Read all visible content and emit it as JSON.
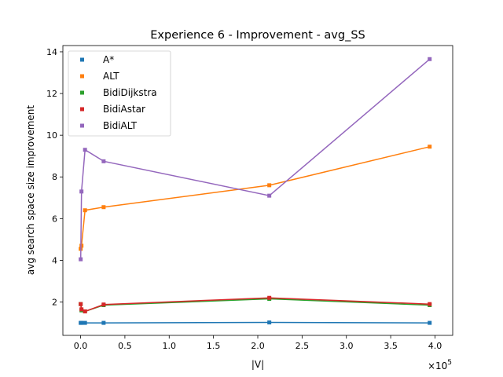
{
  "chart_data": {
    "type": "line",
    "title": "Experience 6 - Improvement - avg_SS",
    "xlabel": "|V|",
    "ylabel": "avg search space size improvement",
    "x_multiplier_label": "×10",
    "x_multiplier_exp": "5",
    "xlim": [
      -0.2,
      4.2
    ],
    "ylim": [
      0.4,
      14.3
    ],
    "x_ticks": [
      0.0,
      0.5,
      1.0,
      1.5,
      2.0,
      2.5,
      3.0,
      3.5,
      4.0
    ],
    "x_tick_labels": [
      "0.0",
      "0.5",
      "1.0",
      "1.5",
      "2.0",
      "2.5",
      "3.0",
      "3.5",
      "4.0"
    ],
    "y_ticks": [
      2,
      4,
      6,
      8,
      10,
      12,
      14
    ],
    "y_tick_labels": [
      "2",
      "4",
      "6",
      "8",
      "10",
      "12",
      "14"
    ],
    "grid": false,
    "legend_position": "top-left",
    "series": [
      {
        "name": "A*",
        "color": "#1f77b4",
        "x": [
          0.001,
          0.01,
          0.05,
          0.26,
          2.13,
          3.94
        ],
        "y": [
          1.0,
          1.0,
          1.0,
          1.0,
          1.02,
          1.0
        ]
      },
      {
        "name": "ALT",
        "color": "#ff7f0e",
        "x": [
          0.001,
          0.01,
          0.05,
          0.26,
          2.13,
          3.94
        ],
        "y": [
          4.55,
          4.7,
          6.4,
          6.55,
          7.6,
          9.45
        ]
      },
      {
        "name": "BidiDijkstra",
        "color": "#2ca02c",
        "x": [
          0.001,
          0.01,
          0.05,
          0.26,
          2.13,
          3.94
        ],
        "y": [
          1.9,
          1.6,
          1.55,
          1.85,
          2.15,
          1.85
        ]
      },
      {
        "name": "BidiAstar",
        "color": "#d62728",
        "x": [
          0.001,
          0.01,
          0.05,
          0.26,
          2.13,
          3.94
        ],
        "y": [
          1.9,
          1.65,
          1.55,
          1.88,
          2.2,
          1.9
        ]
      },
      {
        "name": "BidiALT",
        "color": "#9467bd",
        "x": [
          0.001,
          0.01,
          0.05,
          0.26,
          2.13,
          3.94
        ],
        "y": [
          4.05,
          7.3,
          9.3,
          8.75,
          7.1,
          13.65
        ]
      }
    ]
  }
}
